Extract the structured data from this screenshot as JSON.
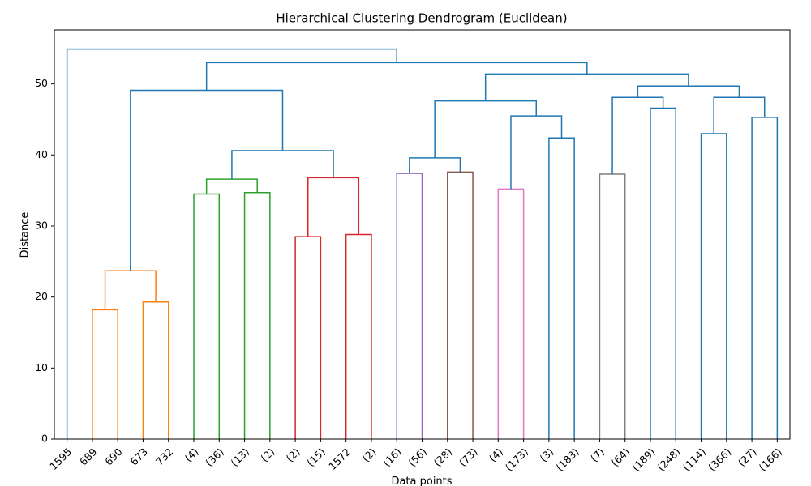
{
  "chart_data": {
    "type": "dendrogram",
    "title": "Hierarchical Clustering Dendrogram (Euclidean)",
    "x_label": "Data points",
    "y_label": "Distance",
    "ylim": [
      0,
      57.6
    ],
    "yticks": [
      0,
      10,
      20,
      30,
      40,
      50
    ],
    "leaves": [
      "1595",
      "689",
      "690",
      "673",
      "732",
      "(4)",
      "(36)",
      "(13)",
      "(2)",
      "(2)",
      "(15)",
      "1572",
      "(2)",
      "(16)",
      "(56)",
      "(28)",
      "(73)",
      "(4)",
      "(173)",
      "(3)",
      "(183)",
      "(7)",
      "(64)",
      "(189)",
      "(248)",
      "(114)",
      "(366)",
      "(27)",
      "(166)"
    ],
    "merges": [
      {
        "left": 1,
        "right": 2,
        "height": 18.2,
        "color": "#ff7f0e"
      },
      {
        "left": 3,
        "right": 4,
        "height": 19.3,
        "color": "#ff7f0e"
      },
      {
        "left": 29,
        "right": 30,
        "height": 23.7,
        "color": "#ff7f0e"
      },
      {
        "left": 5,
        "right": 6,
        "height": 34.5,
        "color": "#2ca02c"
      },
      {
        "left": 7,
        "right": 8,
        "height": 34.7,
        "color": "#2ca02c"
      },
      {
        "left": 32,
        "right": 33,
        "height": 36.6,
        "color": "#2ca02c"
      },
      {
        "left": 9,
        "right": 10,
        "height": 28.5,
        "color": "#d62728"
      },
      {
        "left": 11,
        "right": 12,
        "height": 28.8,
        "color": "#d62728"
      },
      {
        "left": 35,
        "right": 36,
        "height": 36.8,
        "color": "#d62728"
      },
      {
        "left": 34,
        "right": 37,
        "height": 40.6,
        "color": "#1f77b4"
      },
      {
        "left": 31,
        "right": 38,
        "height": 49.1,
        "color": "#1f77b4"
      },
      {
        "left": 13,
        "right": 14,
        "height": 37.4,
        "color": "#9467bd"
      },
      {
        "left": 15,
        "right": 16,
        "height": 37.6,
        "color": "#8c564b"
      },
      {
        "left": 40,
        "right": 41,
        "height": 39.6,
        "color": "#1f77b4"
      },
      {
        "left": 17,
        "right": 18,
        "height": 35.2,
        "color": "#e377c2"
      },
      {
        "left": 19,
        "right": 20,
        "height": 42.4,
        "color": "#1f77b4"
      },
      {
        "left": 43,
        "right": 44,
        "height": 45.5,
        "color": "#1f77b4"
      },
      {
        "left": 42,
        "right": 45,
        "height": 47.6,
        "color": "#1f77b4"
      },
      {
        "left": 21,
        "right": 22,
        "height": 37.3,
        "color": "#7f7f7f"
      },
      {
        "left": 23,
        "right": 24,
        "height": 46.6,
        "color": "#1f77b4"
      },
      {
        "left": 47,
        "right": 48,
        "height": 48.1,
        "color": "#1f77b4"
      },
      {
        "left": 25,
        "right": 26,
        "height": 43.0,
        "color": "#1f77b4"
      },
      {
        "left": 27,
        "right": 28,
        "height": 45.3,
        "color": "#1f77b4"
      },
      {
        "left": 50,
        "right": 51,
        "height": 48.1,
        "color": "#1f77b4"
      },
      {
        "left": 49,
        "right": 52,
        "height": 49.7,
        "color": "#1f77b4"
      },
      {
        "left": 46,
        "right": 53,
        "height": 51.4,
        "color": "#1f77b4"
      },
      {
        "left": 39,
        "right": 54,
        "height": 53.0,
        "color": "#1f77b4"
      },
      {
        "left": 0,
        "right": 55,
        "height": 54.9,
        "color": "#1f77b4"
      }
    ]
  }
}
